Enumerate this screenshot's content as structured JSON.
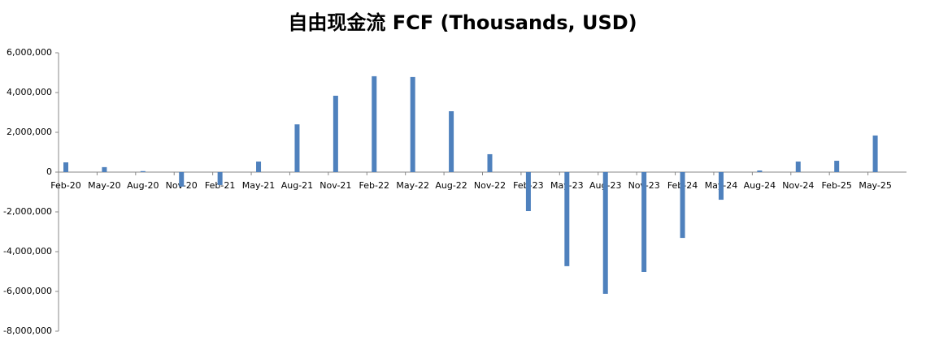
{
  "chart_data": {
    "type": "bar",
    "title": "自由现金流 FCF (Thousands, USD)",
    "categories": [
      "Feb-20",
      "May-20",
      "Aug-20",
      "Nov-20",
      "Feb-21",
      "May-21",
      "Aug-21",
      "Nov-21",
      "Feb-22",
      "May-22",
      "Aug-22",
      "Nov-22",
      "Feb-23",
      "May-23",
      "Aug-23",
      "Nov-23",
      "Feb-24",
      "May-24",
      "Aug-24",
      "Nov-24",
      "Feb-25",
      "May-25"
    ],
    "values": [
      490000,
      250000,
      50000,
      -730000,
      -650000,
      530000,
      2400000,
      3840000,
      4820000,
      4780000,
      3060000,
      900000,
      -1960000,
      -4730000,
      -6120000,
      -5020000,
      -3310000,
      -1390000,
      80000,
      530000,
      570000,
      1840000
    ],
    "color": "#4f81bd",
    "ylim": [
      -8000000,
      6000000
    ],
    "yticks": [
      {
        "value": -8000000,
        "label": "-8,000,000"
      },
      {
        "value": -6000000,
        "label": "-6,000,000"
      },
      {
        "value": -4000000,
        "label": "-4,000,000"
      },
      {
        "value": -2000000,
        "label": "-2,000,000"
      },
      0,
      {
        "value": 2000000,
        "label": "2,000,000"
      },
      {
        "value": 4000000,
        "label": "4,000,000"
      },
      {
        "value": 6000000,
        "label": "6,000,000"
      }
    ],
    "grid": false
  }
}
